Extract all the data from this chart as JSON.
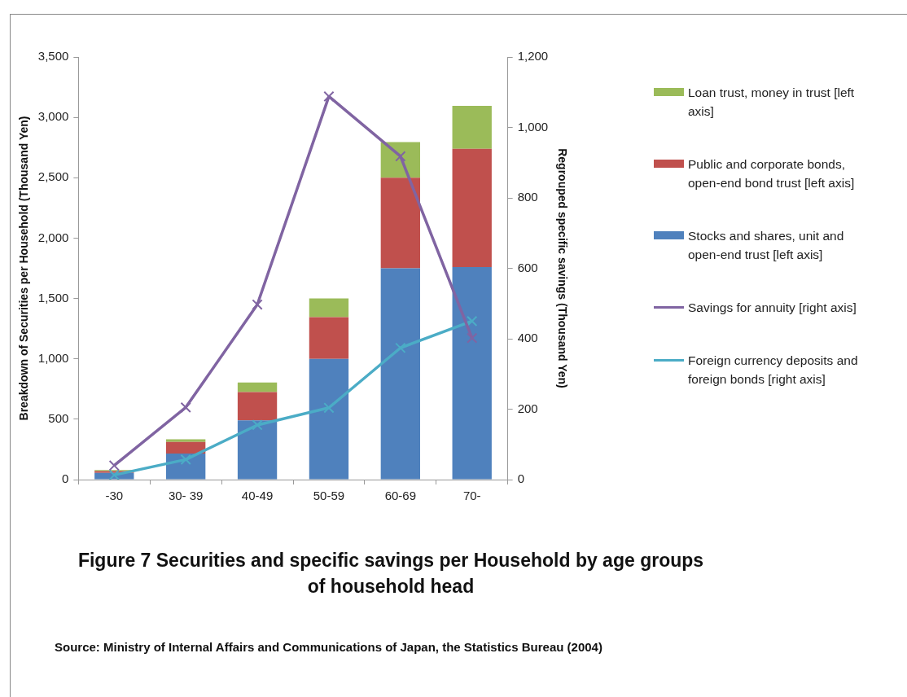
{
  "chart_data": {
    "type": "bar",
    "title": "Figure 7  Securities and specific savings per Household by age groups of household head",
    "ylabel": "Breakdown of Securities per Household (Thousand Yen)",
    "y2label": "Regrouped specific savings (Thousand Yen)",
    "annotations": [
      "Source: Ministry of Internal Affairs and Communications of Japan, the Statistics Bureau (2004)"
    ],
    "categories": [
      "-30",
      "30- 39",
      "40-49",
      "50-59",
      "60-69",
      "70-"
    ],
    "stacked": true,
    "grid": false,
    "legend": "right",
    "ylim": [
      0,
      3500
    ],
    "yticks": [
      0,
      500,
      {
        "value": 1000,
        "label": "1,000"
      },
      {
        "value": 1500,
        "label": "1,500"
      },
      {
        "value": 2000,
        "label": "2,000"
      },
      {
        "value": 2500,
        "label": "2,500"
      },
      {
        "value": 3000,
        "label": "3,000"
      },
      {
        "value": 3500,
        "label": "3,500"
      }
    ],
    "y2lim": [
      0,
      1200
    ],
    "y2ticks": [
      0,
      200,
      400,
      600,
      800,
      {
        "value": 1000,
        "label": "1,000"
      },
      {
        "value": 1200,
        "label": "1,200"
      }
    ],
    "series": [
      {
        "name": "Stocks and shares, unit and open-end trust [left axis]",
        "color": "#4f81bd",
        "values": [
          55,
          215,
          490,
          1000,
          1750,
          1760
        ]
      },
      {
        "name": "Public and corporate bonds, open-end bond trust [left axis]",
        "color": "#c0504d",
        "values": [
          15,
          97,
          235,
          345,
          750,
          980
        ]
      },
      {
        "name": "Loan trust, money in trust [left axis]",
        "color": "#9bbb59",
        "values": [
          10,
          21,
          80,
          155,
          295,
          355
        ]
      },
      {
        "name": "Savings for annuity [right axis]",
        "type": "line",
        "axis": "y2",
        "marker": "cross",
        "color": "#8064a2",
        "values": [
          40,
          205,
          497,
          1088,
          918,
          402
        ]
      },
      {
        "name": "Foreign currency deposits and foreign bonds [right axis]",
        "type": "line",
        "axis": "y2",
        "marker": "cross",
        "color": "#4bacc6",
        "values": [
          13,
          57,
          155,
          204,
          374,
          450
        ]
      }
    ]
  }
}
